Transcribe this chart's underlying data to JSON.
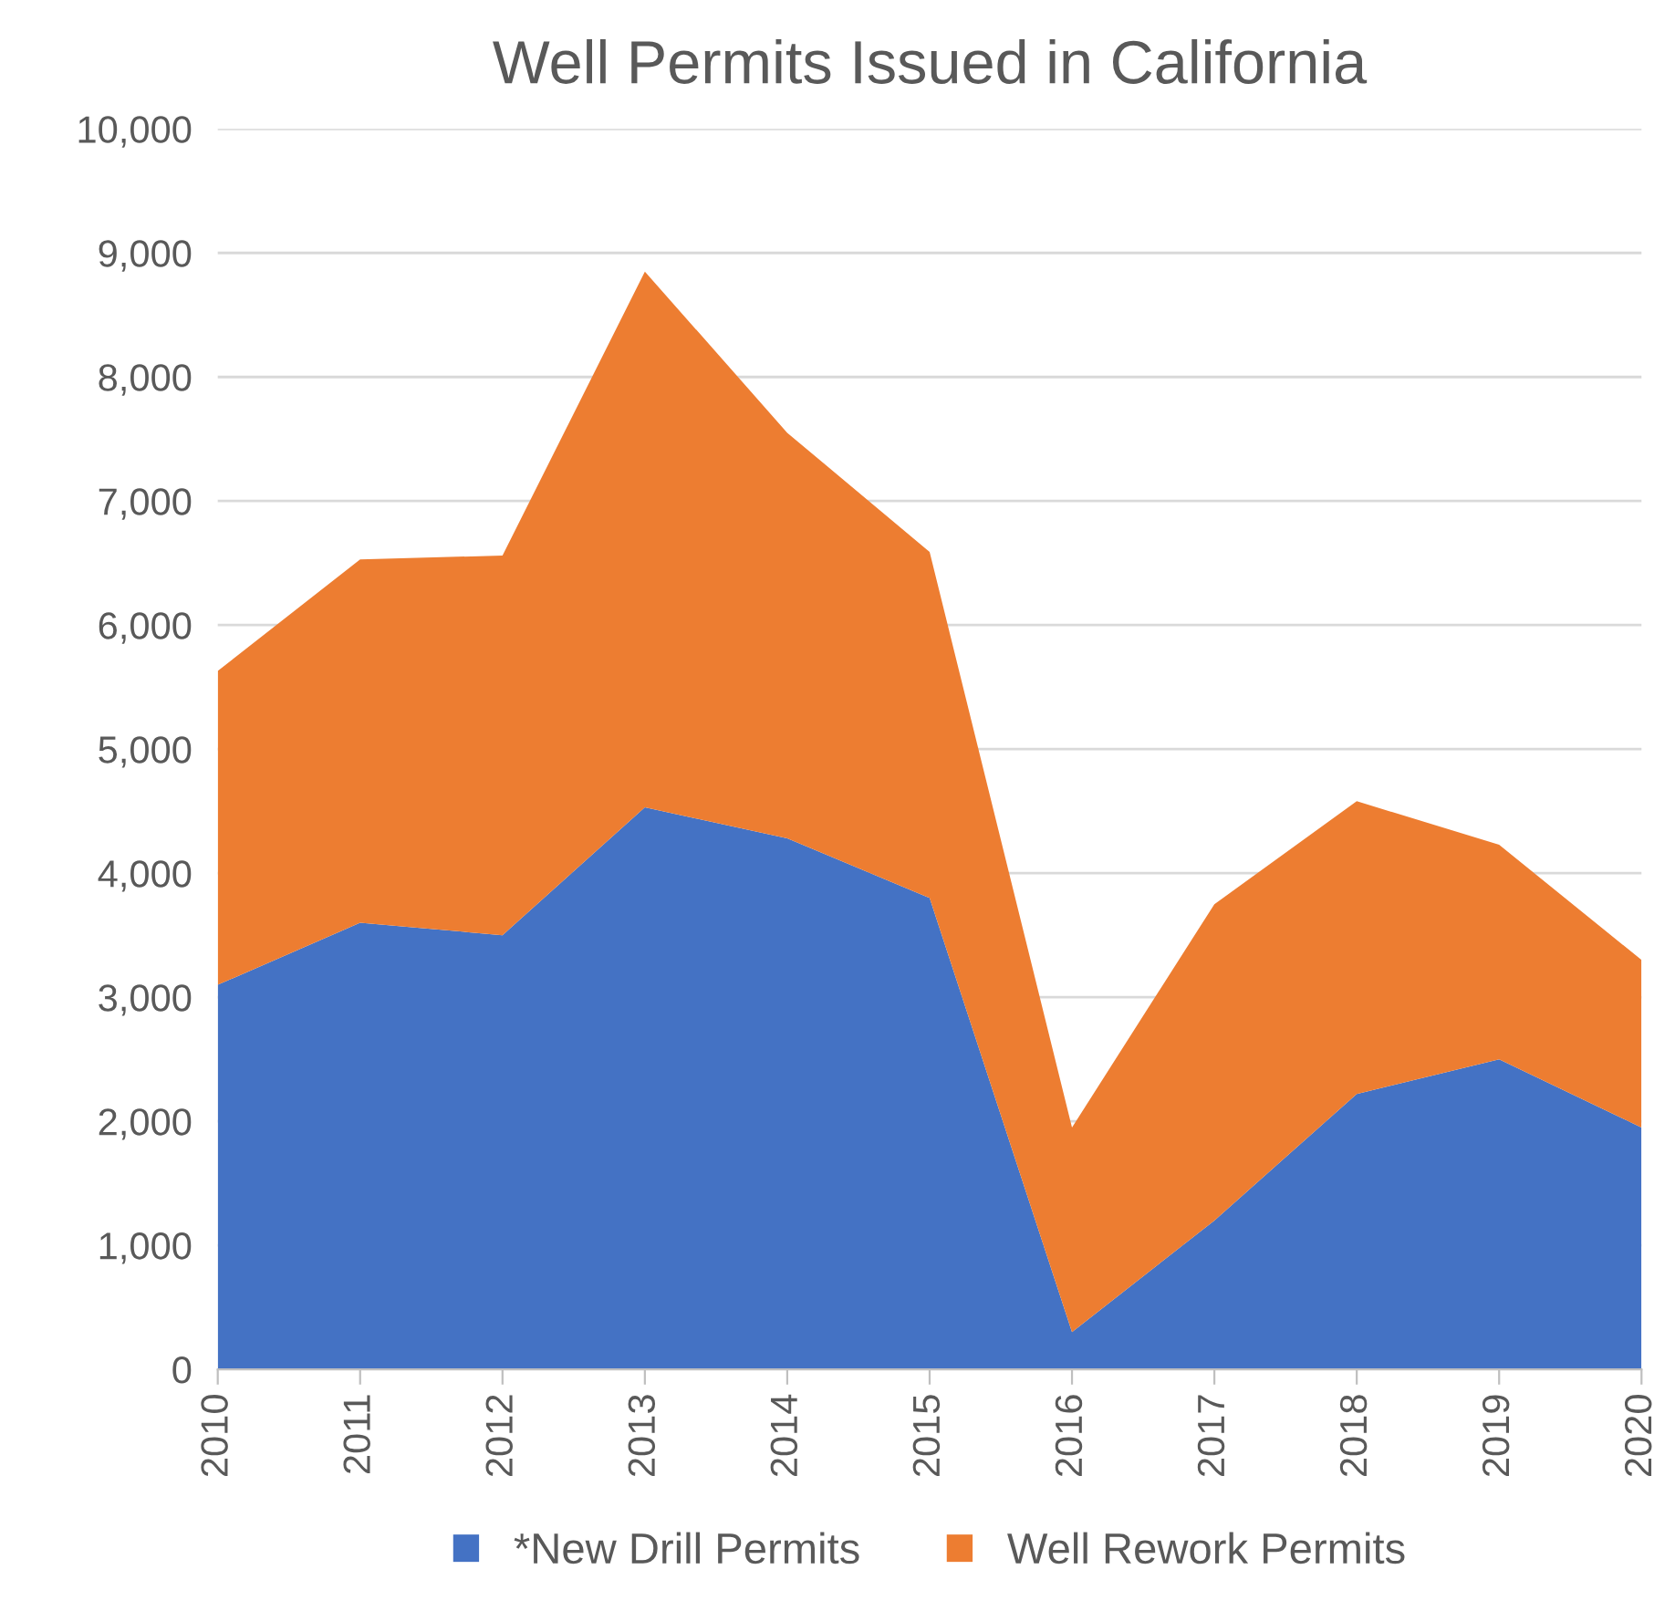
{
  "chart_data": {
    "type": "area",
    "title": "Well Permits Issued in California",
    "stacked": true,
    "categories": [
      "2010",
      "2011",
      "2012",
      "2013",
      "2014",
      "2015",
      "2016",
      "2017",
      "2018",
      "2019",
      "2020"
    ],
    "series": [
      {
        "name": "*New Drill Permits",
        "color": "#4472c4",
        "values": [
          3100,
          3600,
          3500,
          4530,
          4280,
          3800,
          300,
          1200,
          2220,
          2500,
          1950
        ]
      },
      {
        "name": "Well Rework Permits",
        "color": "#ed7d31",
        "values": [
          2530,
          2930,
          3060,
          4320,
          3270,
          2790,
          1650,
          2550,
          2360,
          1730,
          1350
        ]
      }
    ],
    "ylim": [
      0,
      10000
    ],
    "yticks": [
      {
        "value": 0,
        "label": "0"
      },
      {
        "value": 1000,
        "label": "1,000"
      },
      {
        "value": 2000,
        "label": "2,000"
      },
      {
        "value": 3000,
        "label": "3,000"
      },
      {
        "value": 4000,
        "label": "4,000"
      },
      {
        "value": 5000,
        "label": "5,000"
      },
      {
        "value": 6000,
        "label": "6,000"
      },
      {
        "value": 7000,
        "label": "7,000"
      },
      {
        "value": 8000,
        "label": "8,000"
      },
      {
        "value": 9000,
        "label": "9,000"
      },
      {
        "value": 10000,
        "label": "10,000"
      }
    ],
    "grid": "y",
    "legend": "bottom"
  }
}
